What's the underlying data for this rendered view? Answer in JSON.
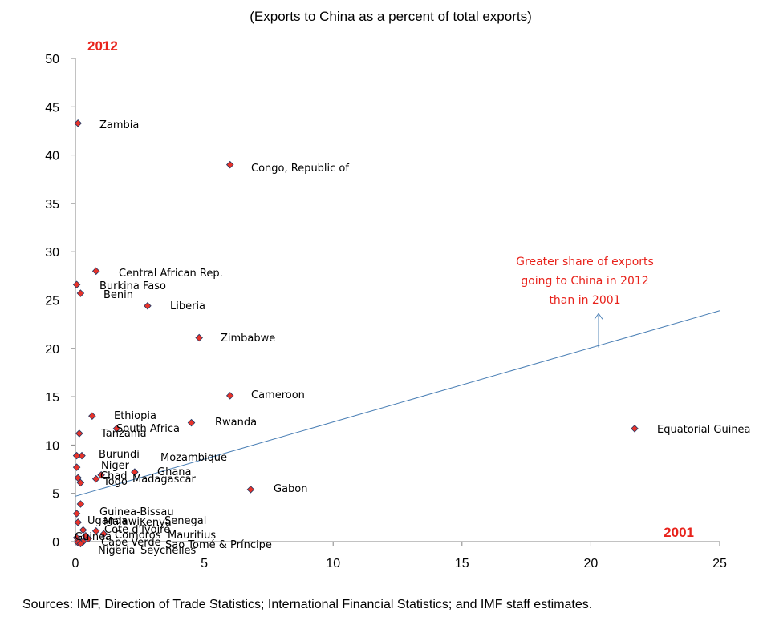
{
  "subtitle": "(Exports to China as a percent of total exports)",
  "source": "Sources: IMF, Direction of Trade Statistics; International Financial Statistics; and IMF staff estimates.",
  "chart_data": {
    "type": "scatter",
    "subtitle": "(Exports to China as a percent of total exports)",
    "x_axis_label": "2001",
    "y_axis_label": "2012",
    "xlim": [
      0,
      25
    ],
    "ylim": [
      0,
      50
    ],
    "x_ticks": [
      "0",
      "5",
      "10",
      "15",
      "20",
      "25"
    ],
    "y_ticks": [
      "0",
      "5",
      "10",
      "15",
      "20",
      "25",
      "30",
      "35",
      "40",
      "45",
      "50"
    ],
    "grid": false,
    "marker_color": "#e8332a",
    "marker_edge_color": "#1f3864",
    "trend_line_color": "#4a7fb5",
    "annotation_color": "#e8231c",
    "trend_line": {
      "x": [
        0,
        25
      ],
      "y": [
        4.7,
        23.9
      ]
    },
    "annotation": {
      "lines": [
        "Greater share of exports",
        "going to China in 2012",
        "than in 2001"
      ],
      "arrow_from": [
        20.3,
        20.1
      ],
      "arrow_to": [
        20.3,
        23.6
      ]
    },
    "points": [
      {
        "label": "Zambia",
        "x": 0.1,
        "y": 43.3
      },
      {
        "label": "Congo, Republic of",
        "x": 6.0,
        "y": 39.0
      },
      {
        "label": "Central African Rep.",
        "x": 0.8,
        "y": 28.0
      },
      {
        "label": "Burkina Faso",
        "x": 0.05,
        "y": 26.6
      },
      {
        "label": "Benin",
        "x": 0.2,
        "y": 25.7
      },
      {
        "label": "Liberia",
        "x": 2.8,
        "y": 24.4
      },
      {
        "label": "Zimbabwe",
        "x": 4.8,
        "y": 21.1
      },
      {
        "label": "Cameroon",
        "x": 6.0,
        "y": 15.1
      },
      {
        "label": "Ethiopia",
        "x": 0.65,
        "y": 13.0
      },
      {
        "label": "Rwanda",
        "x": 4.5,
        "y": 12.3
      },
      {
        "label": "South Africa",
        "x": 1.6,
        "y": 11.7
      },
      {
        "label": "Tanzania",
        "x": 0.15,
        "y": 11.2
      },
      {
        "label": "Equatorial Guinea",
        "x": 21.7,
        "y": 11.7
      },
      {
        "label": "Burundi",
        "x": 0.25,
        "y": 8.9
      },
      {
        "label": "",
        "x": 0.05,
        "y": 8.9
      },
      {
        "label": "Mozambique",
        "x": 2.3,
        "y": 7.2
      },
      {
        "label": "Niger",
        "x": 0.05,
        "y": 7.7
      },
      {
        "label": "Ghana",
        "x": 1.0,
        "y": 6.9
      },
      {
        "label": "Chad",
        "x": 0.1,
        "y": 6.6
      },
      {
        "label": "Madagascar",
        "x": 0.8,
        "y": 6.5
      },
      {
        "label": "Togo",
        "x": 0.2,
        "y": 6.1
      },
      {
        "label": "Gabon",
        "x": 6.8,
        "y": 5.4
      },
      {
        "label": "Malawi",
        "x": 0.2,
        "y": 3.9
      },
      {
        "label": "Guinea-Bissau",
        "x": 0.05,
        "y": 2.9
      },
      {
        "label": "Uganda",
        "x": 0.1,
        "y": 2.0
      },
      {
        "label": "Kenya",
        "x": 0.8,
        "y": 1.1
      },
      {
        "label": "Senegal",
        "x": 1.1,
        "y": 0.8
      },
      {
        "label": "Cote d'Ivoire",
        "x": 0.3,
        "y": 1.2
      },
      {
        "label": "Comoros",
        "x": 0.4,
        "y": 0.6
      },
      {
        "label": "Mauritius",
        "x": 0.5,
        "y": 0.3
      },
      {
        "label": "Guinea",
        "x": 0.05,
        "y": 0.4
      },
      {
        "label": "Cape Verde",
        "x": 0.1,
        "y": 0.1
      },
      {
        "label": "Sao Tomé & Príncipe",
        "x": 0.3,
        "y": 0.0
      },
      {
        "label": "Nigeria",
        "x": 0.1,
        "y": -0.1
      },
      {
        "label": "Seychelles",
        "x": 0.2,
        "y": -0.2
      }
    ]
  }
}
